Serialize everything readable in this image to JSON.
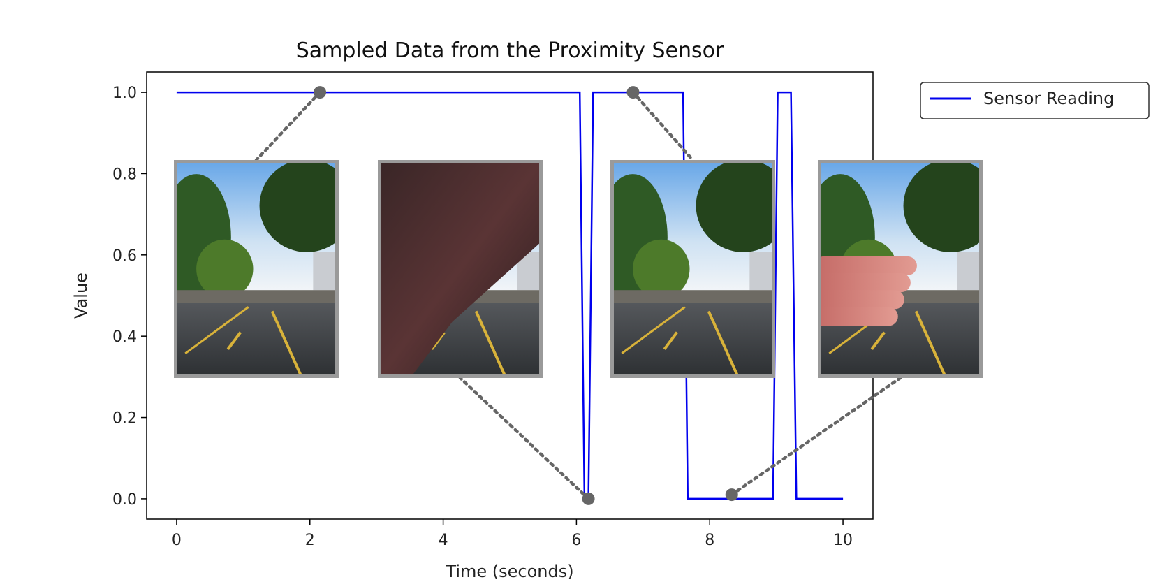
{
  "chart_data": {
    "type": "line",
    "title": "Sampled Data from the Proximity Sensor",
    "xlabel": "Time (seconds)",
    "ylabel": "Value",
    "xlim": [
      -0.45,
      10.45
    ],
    "ylim": [
      -0.05,
      1.05
    ],
    "xticks": [
      0,
      2,
      4,
      6,
      8,
      10
    ],
    "yticks": [
      0.0,
      0.2,
      0.4,
      0.6,
      0.8,
      1.0
    ],
    "xtick_labels": [
      "0",
      "2",
      "4",
      "6",
      "8",
      "10"
    ],
    "ytick_labels": [
      "0.0",
      "0.2",
      "0.4",
      "0.6",
      "0.8",
      "1.0"
    ],
    "grid": false,
    "legend_position": "outside-top-right",
    "series": [
      {
        "name": "Sensor Reading",
        "color": "#0000ee",
        "x": [
          0.0,
          6.05,
          6.12,
          6.18,
          6.25,
          7.6,
          7.67,
          8.95,
          9.02,
          9.22,
          9.3,
          10.0
        ],
        "y": [
          1,
          1,
          0,
          0,
          1,
          1,
          0,
          0,
          1,
          1,
          0,
          0
        ]
      }
    ],
    "markers": [
      {
        "x": 2.15,
        "y": 1.0,
        "photo": 0
      },
      {
        "x": 6.18,
        "y": 0.0,
        "photo": 1
      },
      {
        "x": 6.85,
        "y": 1.0,
        "photo": 2
      },
      {
        "x": 8.33,
        "y": 0.01,
        "photo": 3
      }
    ],
    "marker_color": "#666666",
    "photos": [
      {
        "name": "road-scene-clear",
        "occluded": false
      },
      {
        "name": "road-scene-arm-occluded",
        "occluded": true
      },
      {
        "name": "road-scene-clear-2",
        "occluded": false
      },
      {
        "name": "road-scene-hand-occluded",
        "occluded": true
      }
    ]
  }
}
